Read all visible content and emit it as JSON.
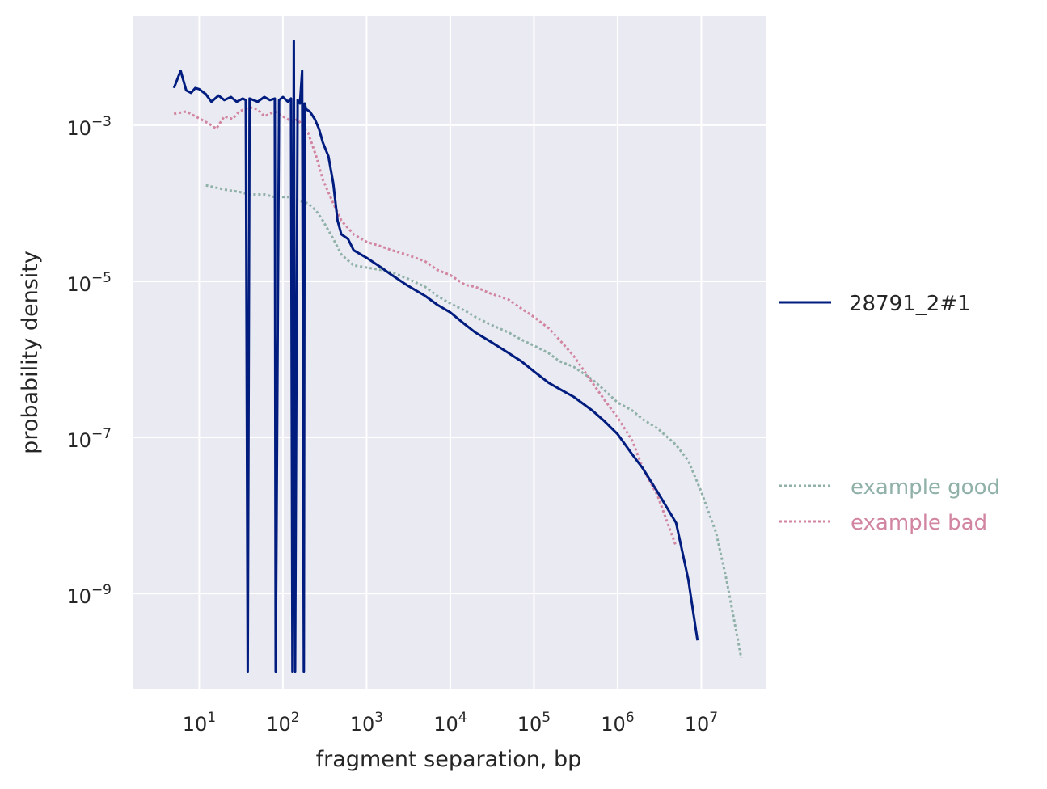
{
  "chart_data": {
    "type": "line",
    "xlabel": "fragment separation, bp",
    "ylabel": "probability density",
    "xscale": "log",
    "yscale": "log",
    "xlim": [
      1.6,
      60000000
    ],
    "ylim": [
      6e-11,
      0.025
    ],
    "grid": true,
    "legend_placement": "right",
    "x_ticks": [
      {
        "base": "10",
        "exp": "1",
        "value": 10
      },
      {
        "base": "10",
        "exp": "2",
        "value": 100
      },
      {
        "base": "10",
        "exp": "3",
        "value": 1000
      },
      {
        "base": "10",
        "exp": "4",
        "value": 10000
      },
      {
        "base": "10",
        "exp": "5",
        "value": 100000
      },
      {
        "base": "10",
        "exp": "6",
        "value": 1000000
      },
      {
        "base": "10",
        "exp": "7",
        "value": 10000000
      }
    ],
    "y_ticks": [
      {
        "base": "10",
        "exp": "−3",
        "value": 0.001
      },
      {
        "base": "10",
        "exp": "−5",
        "value": 1e-05
      },
      {
        "base": "10",
        "exp": "−7",
        "value": 1e-07
      },
      {
        "base": "10",
        "exp": "−9",
        "value": 1e-09
      }
    ],
    "series": [
      {
        "name": "28791_2#1",
        "color": "#001c7f",
        "style": "solid",
        "x": [
          5,
          6,
          7,
          8,
          9,
          10,
          12,
          14,
          17,
          20,
          24,
          28,
          33,
          36,
          38,
          40,
          50,
          60,
          70,
          80,
          82,
          90,
          100,
          115,
          125,
          130,
          135,
          140,
          150,
          160,
          170,
          178,
          182,
          190,
          210,
          240,
          270,
          300,
          350,
          400,
          450,
          500,
          600,
          700,
          1000,
          1500,
          2000,
          3000,
          5000,
          7000,
          10000,
          15000,
          20000,
          30000,
          50000,
          70000,
          100000,
          150000,
          200000,
          300000,
          500000,
          700000,
          1000000,
          1500000,
          2000000,
          3000000,
          5000000,
          7000000,
          9000000
        ],
        "y": [
          0.003,
          0.005,
          0.0028,
          0.0026,
          0.003,
          0.0029,
          0.0025,
          0.002,
          0.0024,
          0.0021,
          0.0023,
          0.002,
          0.0022,
          0.0021,
          1e-10,
          0.0022,
          0.002,
          0.0023,
          0.0021,
          0.0022,
          1e-10,
          0.0021,
          0.0023,
          0.002,
          0.0022,
          1e-10,
          0.012,
          1e-10,
          0.0021,
          0.0019,
          0.005,
          1e-10,
          0.0019,
          0.0016,
          0.0015,
          0.0012,
          0.0009,
          0.0006,
          0.0004,
          0.00018,
          6e-05,
          4e-05,
          3.5e-05,
          2.5e-05,
          2e-05,
          1.5e-05,
          1.2e-05,
          9e-06,
          6.5e-06,
          5e-06,
          4e-06,
          2.8e-06,
          2.2e-06,
          1.7e-06,
          1.2e-06,
          9.5e-07,
          7e-07,
          5e-07,
          4.2e-07,
          3.3e-07,
          2.2e-07,
          1.6e-07,
          1.1e-07,
          6e-08,
          4e-08,
          2e-08,
          8e-09,
          1.5e-09,
          2.5e-10
        ]
      },
      {
        "name": "example good",
        "color": "#8fb1a8",
        "style": "dotted",
        "x": [
          12,
          20,
          30,
          40,
          60,
          80,
          100,
          130,
          150,
          200,
          250,
          300,
          400,
          500,
          700,
          1000,
          1500,
          2000,
          3000,
          5000,
          7000,
          10000,
          15000,
          20000,
          30000,
          50000,
          70000,
          100000,
          150000,
          200000,
          300000,
          500000,
          700000,
          1000000,
          1500000,
          2000000,
          3000000,
          5000000,
          7000000,
          10000000,
          15000000,
          20000000,
          30000000
        ],
        "y": [
          0.00017,
          0.00015,
          0.00014,
          0.00013,
          0.00013,
          0.00012,
          0.00012,
          0.00012,
          0.00011,
          0.0001,
          8e-05,
          6e-05,
          3.5e-05,
          2.2e-05,
          1.6e-05,
          1.5e-05,
          1.4e-05,
          1.3e-05,
          1.1e-05,
          8.5e-06,
          6.5e-06,
          5.2e-06,
          4.2e-06,
          3.5e-06,
          2.8e-06,
          2.2e-06,
          1.8e-06,
          1.5e-06,
          1.2e-06,
          9.5e-07,
          8e-07,
          5.5e-07,
          4e-07,
          2.8e-07,
          2.2e-07,
          1.7e-07,
          1.3e-07,
          8e-08,
          5e-08,
          2e-08,
          6e-09,
          1.5e-09,
          1.5e-10
        ]
      },
      {
        "name": "example bad",
        "color": "#d285a1",
        "style": "dotted",
        "x": [
          5,
          7,
          9,
          12,
          14,
          16,
          20,
          25,
          30,
          40,
          50,
          60,
          80,
          100,
          130,
          150,
          180,
          200,
          250,
          300,
          400,
          500,
          700,
          1000,
          1500,
          2000,
          3000,
          5000,
          7000,
          10000,
          15000,
          20000,
          30000,
          50000,
          70000,
          100000,
          150000,
          200000,
          300000,
          500000,
          700000,
          1000000,
          1500000,
          2000000,
          3000000,
          5000000
        ],
        "y": [
          0.0014,
          0.0015,
          0.0013,
          0.0011,
          0.001,
          0.0009,
          0.0013,
          0.0012,
          0.0015,
          0.0017,
          0.0016,
          0.0013,
          0.0015,
          0.0013,
          0.0011,
          0.0012,
          0.0009,
          0.0008,
          0.0004,
          0.0002,
          0.0001,
          6e-05,
          4e-05,
          3.2e-05,
          2.8e-05,
          2.5e-05,
          2.2e-05,
          1.8e-05,
          1.4e-05,
          1.2e-05,
          9e-06,
          8.5e-06,
          7e-06,
          5.8e-06,
          4.5e-06,
          3.5e-06,
          2.5e-06,
          1.8e-06,
          1.1e-06,
          5e-07,
          3e-07,
          1.8e-07,
          9e-08,
          4e-08,
          1.8e-08,
          4e-09
        ]
      }
    ],
    "legend": [
      {
        "label": "28791_2#1",
        "series": 0
      },
      {
        "label": "example good",
        "series": 1
      },
      {
        "label": "example bad",
        "series": 2
      }
    ]
  }
}
